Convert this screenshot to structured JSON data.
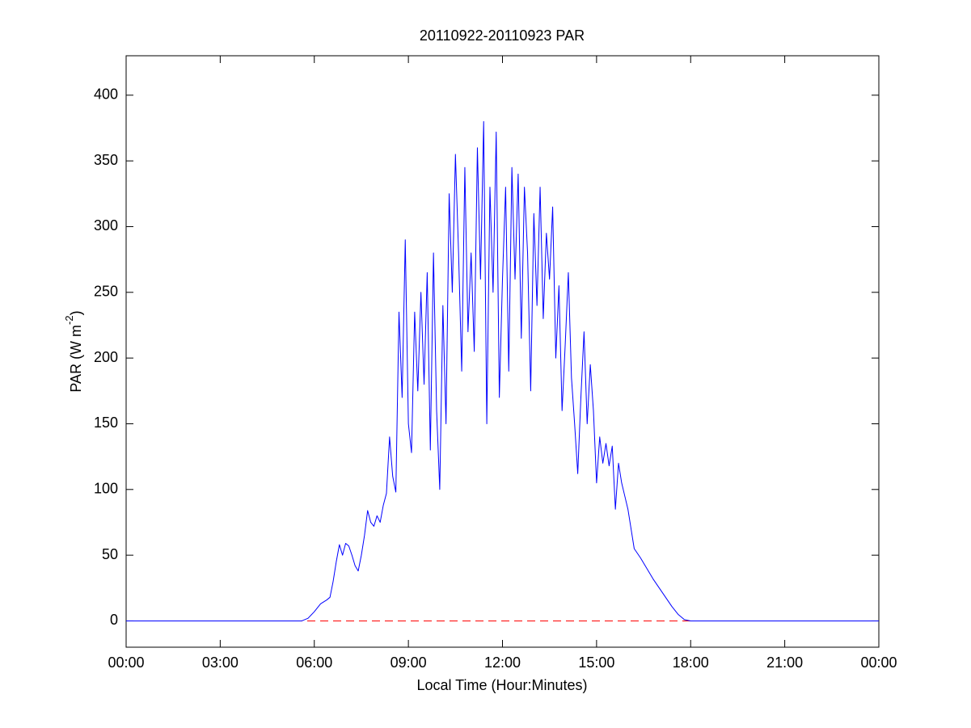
{
  "chart_data": {
    "type": "line",
    "title": "20110922-20110923 PAR",
    "xlabel": "Local Time (Hour:Minutes)",
    "ylabel": {
      "text": "PAR (W m",
      "superscript": "-2",
      "suffix": ")"
    },
    "xlim": [
      0,
      24
    ],
    "ylim": [
      -20,
      430
    ],
    "xticks": [
      {
        "value": 0,
        "label": "00:00"
      },
      {
        "value": 3,
        "label": "03:00"
      },
      {
        "value": 6,
        "label": "06:00"
      },
      {
        "value": 9,
        "label": "09:00"
      },
      {
        "value": 12,
        "label": "12:00"
      },
      {
        "value": 15,
        "label": "15:00"
      },
      {
        "value": 18,
        "label": "18:00"
      },
      {
        "value": 21,
        "label": "21:00"
      },
      {
        "value": 24,
        "label": "00:00"
      }
    ],
    "yticks": [
      0,
      50,
      100,
      150,
      200,
      250,
      300,
      350,
      400
    ],
    "grid": false,
    "hlines": [
      {
        "value": 0,
        "color": "#ff0000",
        "style": "dashed"
      }
    ],
    "series": [
      {
        "color": "#0000ff",
        "x": [
          0,
          5.6,
          5.8,
          6.0,
          6.2,
          6.4,
          6.5,
          6.6,
          6.7,
          6.8,
          6.9,
          7.0,
          7.1,
          7.2,
          7.3,
          7.4,
          7.5,
          7.6,
          7.7,
          7.8,
          7.9,
          8.0,
          8.1,
          8.2,
          8.3,
          8.4,
          8.5,
          8.6,
          8.7,
          8.8,
          8.9,
          9.0,
          9.1,
          9.2,
          9.3,
          9.4,
          9.5,
          9.6,
          9.7,
          9.8,
          9.9,
          10.0,
          10.1,
          10.2,
          10.3,
          10.4,
          10.5,
          10.6,
          10.7,
          10.8,
          10.9,
          11.0,
          11.1,
          11.2,
          11.3,
          11.4,
          11.5,
          11.6,
          11.7,
          11.8,
          11.9,
          12.0,
          12.1,
          12.2,
          12.3,
          12.4,
          12.5,
          12.6,
          12.7,
          12.8,
          12.9,
          13.0,
          13.1,
          13.2,
          13.3,
          13.4,
          13.5,
          13.6,
          13.7,
          13.8,
          13.9,
          14.0,
          14.1,
          14.2,
          14.3,
          14.4,
          14.5,
          14.6,
          14.7,
          14.8,
          14.9,
          15.0,
          15.1,
          15.2,
          15.3,
          15.4,
          15.5,
          15.6,
          15.7,
          15.8,
          15.9,
          16.0,
          16.1,
          16.2,
          16.4,
          16.6,
          16.8,
          17.0,
          17.2,
          17.4,
          17.6,
          17.8,
          18.0,
          24
        ],
        "values": [
          0,
          0,
          2,
          7,
          13,
          16,
          18,
          30,
          45,
          58,
          50,
          59,
          57,
          50,
          42,
          38,
          50,
          65,
          84,
          75,
          72,
          80,
          75,
          88,
          97,
          140,
          110,
          98,
          235,
          170,
          290,
          150,
          128,
          235,
          175,
          250,
          180,
          265,
          130,
          280,
          160,
          100,
          240,
          150,
          325,
          250,
          355,
          280,
          190,
          345,
          220,
          280,
          205,
          360,
          260,
          380,
          150,
          330,
          250,
          372,
          170,
          260,
          330,
          190,
          345,
          260,
          340,
          215,
          330,
          280,
          175,
          310,
          240,
          330,
          230,
          295,
          260,
          315,
          200,
          255,
          160,
          210,
          265,
          185,
          150,
          112,
          170,
          220,
          150,
          195,
          160,
          105,
          140,
          120,
          135,
          118,
          133,
          85,
          120,
          105,
          95,
          85,
          70,
          55,
          48,
          40,
          32,
          25,
          18,
          11,
          5,
          1,
          0,
          0
        ]
      }
    ]
  }
}
